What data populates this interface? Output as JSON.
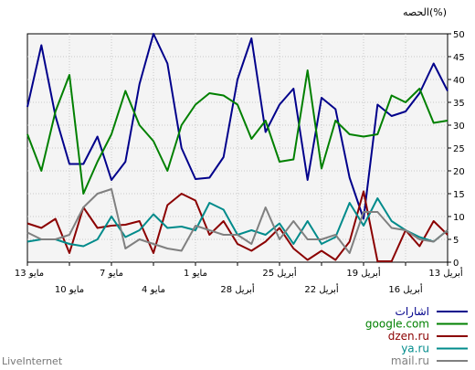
{
  "brand": "LiveInternet",
  "chart_data": {
    "type": "line",
    "ylabel": "الحصه(%)",
    "ylim": [
      0,
      50
    ],
    "yticks": [
      0,
      5,
      10,
      15,
      20,
      25,
      30,
      35,
      40,
      45,
      50
    ],
    "x_tick_labels_upper": [
      "13 مايو",
      "7 مايو",
      "1 مايو",
      "25 أبريل",
      "19 أبريل",
      "13 أبريل"
    ],
    "x_tick_labels_lower": [
      "10 مايو",
      "4 مايو",
      "28 أبريل",
      "22 أبريل",
      "16 أبريل"
    ],
    "grid": true,
    "legend_position": "bottom-right",
    "series": [
      {
        "name": "اشارات",
        "color": "#00008b",
        "values": [
          34,
          47.5,
          32,
          21.5,
          21.5,
          27.5,
          18,
          22,
          39,
          50,
          43.5,
          25,
          18.2,
          18.5,
          23,
          40,
          49,
          28.5,
          34.5,
          38,
          18,
          36,
          33.5,
          18.5,
          9.5,
          34.5,
          32,
          33,
          37,
          43.5,
          37.5
        ]
      },
      {
        "name": "google.com",
        "color": "#008000",
        "values": [
          28,
          20,
          33,
          41,
          15,
          22,
          28,
          37.5,
          30,
          26.5,
          20,
          30,
          34.5,
          37,
          36.5,
          34.5,
          27,
          31,
          22,
          22.5,
          42,
          20.5,
          31,
          28,
          27.5,
          28,
          36.5,
          35,
          38,
          30.5,
          31
        ]
      },
      {
        "name": "dzen.ru",
        "color": "#8b0000",
        "values": [
          8.5,
          7.5,
          9.5,
          2,
          12,
          7.5,
          8,
          8.2,
          9,
          2,
          12.5,
          15,
          13.5,
          6,
          9,
          4,
          2.5,
          4.5,
          7.5,
          3,
          0.5,
          2.5,
          0.5,
          4.5,
          15.5,
          0.2,
          0.2,
          7,
          3.5,
          9,
          6
        ]
      },
      {
        "name": "ya.ru",
        "color": "#008b8b",
        "values": [
          4.5,
          5,
          5,
          4,
          3.5,
          5,
          10,
          5.5,
          7,
          10.5,
          7.5,
          7.8,
          7,
          13,
          11.5,
          6,
          7,
          6,
          8.5,
          4,
          9,
          4,
          5.5,
          13,
          8,
          14,
          9,
          7,
          5.5,
          4.5,
          7
        ]
      },
      {
        "name": "mail.ru",
        "color": "#808080",
        "values": [
          6.5,
          5,
          5,
          6,
          12,
          15,
          16,
          3,
          5,
          4,
          3,
          2.5,
          8,
          7,
          6,
          6,
          4,
          12,
          5,
          9,
          5,
          5,
          6,
          2,
          11,
          11,
          7.5,
          7,
          5,
          4.5,
          7
        ]
      }
    ]
  }
}
